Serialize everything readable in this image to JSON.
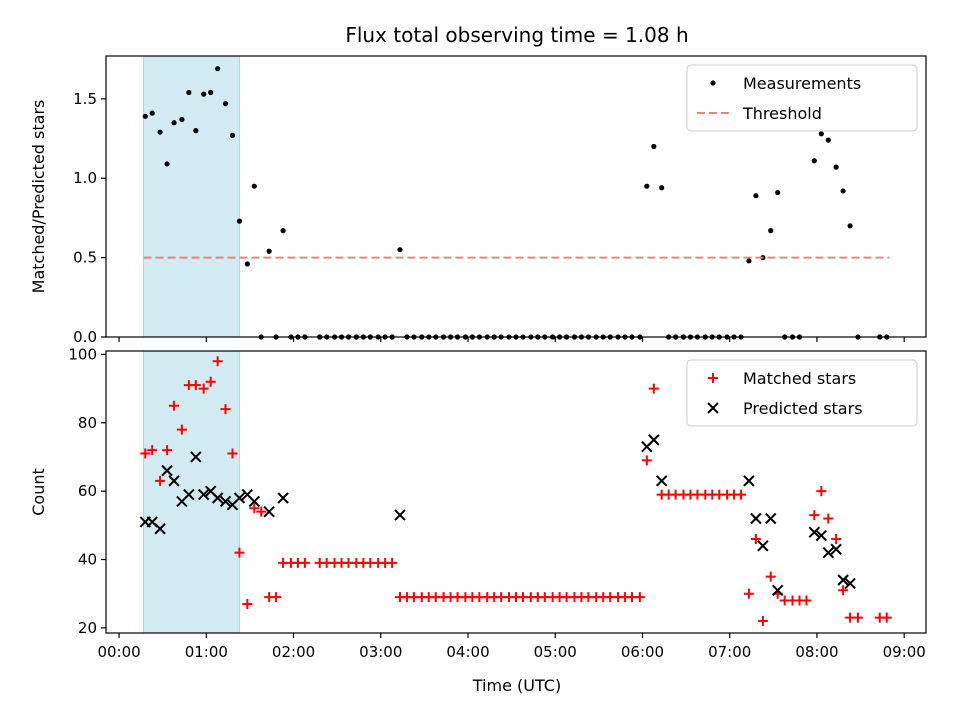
{
  "figure": {
    "title": "Flux total observing time = 1.08 h",
    "xlabel": "Time (UTC)",
    "x_ticks": [
      "00:00",
      "01:00",
      "02:00",
      "03:00",
      "04:00",
      "05:00",
      "06:00",
      "07:00",
      "08:00",
      "09:00"
    ],
    "x_tick_hours": [
      0,
      1,
      2,
      3,
      4,
      5,
      6,
      7,
      8,
      9
    ],
    "shaded_span_hours": [
      0.28,
      1.38
    ]
  },
  "colors": {
    "shade": "#add8e6",
    "measurement": "#000000",
    "threshold": "#f08080",
    "matched": "#ff0000",
    "predicted": "#000000"
  },
  "chart_data": [
    {
      "type": "scatter",
      "ylabel": "Matched/Predicted stars",
      "xlim": [
        -0.15,
        9.25
      ],
      "ylim": [
        0,
        1.77
      ],
      "y_ticks": [
        "0.0",
        "0.5",
        "1.0",
        "1.5"
      ],
      "y_tick_values": [
        0,
        0.5,
        1.0,
        1.5
      ],
      "legend_position": "top-right",
      "series": [
        {
          "name": "Measurements",
          "marker": "dot",
          "points": [
            [
              0.3,
              1.39
            ],
            [
              0.38,
              1.41
            ],
            [
              0.47,
              1.29
            ],
            [
              0.55,
              1.09
            ],
            [
              0.63,
              1.35
            ],
            [
              0.72,
              1.37
            ],
            [
              0.8,
              1.54
            ],
            [
              0.88,
              1.3
            ],
            [
              0.97,
              1.53
            ],
            [
              1.05,
              1.54
            ],
            [
              1.13,
              1.69
            ],
            [
              1.22,
              1.47
            ],
            [
              1.3,
              1.27
            ],
            [
              1.38,
              0.73
            ],
            [
              1.47,
              0.46
            ],
            [
              1.55,
              0.95
            ],
            [
              1.63,
              0
            ],
            [
              1.72,
              0.54
            ],
            [
              1.8,
              0
            ],
            [
              1.88,
              0.67
            ],
            [
              1.97,
              0
            ],
            [
              2.05,
              0
            ],
            [
              2.13,
              0
            ],
            [
              2.3,
              0
            ],
            [
              2.38,
              0
            ],
            [
              2.47,
              0
            ],
            [
              2.55,
              0
            ],
            [
              2.63,
              0
            ],
            [
              2.72,
              0
            ],
            [
              2.8,
              0
            ],
            [
              2.88,
              0
            ],
            [
              2.97,
              0
            ],
            [
              3.05,
              0
            ],
            [
              3.13,
              0
            ],
            [
              3.22,
              0.55
            ],
            [
              3.3,
              0
            ],
            [
              3.38,
              0
            ],
            [
              3.47,
              0
            ],
            [
              3.55,
              0
            ],
            [
              3.63,
              0
            ],
            [
              3.72,
              0
            ],
            [
              3.8,
              0
            ],
            [
              3.88,
              0
            ],
            [
              3.97,
              0
            ],
            [
              4.05,
              0
            ],
            [
              4.13,
              0
            ],
            [
              4.22,
              0
            ],
            [
              4.3,
              0
            ],
            [
              4.38,
              0
            ],
            [
              4.47,
              0
            ],
            [
              4.55,
              0
            ],
            [
              4.63,
              0
            ],
            [
              4.72,
              0
            ],
            [
              4.8,
              0
            ],
            [
              4.88,
              0
            ],
            [
              4.97,
              0
            ],
            [
              5.05,
              0
            ],
            [
              5.13,
              0
            ],
            [
              5.22,
              0
            ],
            [
              5.3,
              0
            ],
            [
              5.38,
              0
            ],
            [
              5.47,
              0
            ],
            [
              5.55,
              0
            ],
            [
              5.63,
              0
            ],
            [
              5.72,
              0
            ],
            [
              5.8,
              0
            ],
            [
              5.88,
              0
            ],
            [
              5.97,
              0
            ],
            [
              6.05,
              0.95
            ],
            [
              6.13,
              1.2
            ],
            [
              6.22,
              0.94
            ],
            [
              6.3,
              0
            ],
            [
              6.38,
              0
            ],
            [
              6.47,
              0
            ],
            [
              6.55,
              0
            ],
            [
              6.63,
              0
            ],
            [
              6.72,
              0
            ],
            [
              6.8,
              0
            ],
            [
              6.88,
              0
            ],
            [
              6.97,
              0
            ],
            [
              7.05,
              0
            ],
            [
              7.13,
              0
            ],
            [
              7.22,
              0.48
            ],
            [
              7.3,
              0.89
            ],
            [
              7.38,
              0.5
            ],
            [
              7.47,
              0.67
            ],
            [
              7.55,
              0.91
            ],
            [
              7.63,
              0
            ],
            [
              7.72,
              0
            ],
            [
              7.8,
              0
            ],
            [
              7.97,
              1.11
            ],
            [
              8.05,
              1.28
            ],
            [
              8.13,
              1.24
            ],
            [
              8.22,
              1.07
            ],
            [
              8.3,
              0.92
            ],
            [
              8.38,
              0.7
            ],
            [
              8.47,
              0
            ],
            [
              8.72,
              0
            ],
            [
              8.8,
              0
            ]
          ]
        },
        {
          "name": "Threshold",
          "marker": "dashed-line",
          "points": [
            [
              0.28,
              0.5
            ],
            [
              8.83,
              0.5
            ]
          ]
        }
      ]
    },
    {
      "type": "scatter",
      "ylabel": "Count",
      "xlim": [
        -0.15,
        9.25
      ],
      "ylim": [
        18.5,
        101
      ],
      "y_ticks": [
        "20",
        "40",
        "60",
        "80",
        "100"
      ],
      "y_tick_values": [
        20,
        40,
        60,
        80,
        100
      ],
      "legend_position": "top-right",
      "series": [
        {
          "name": "Matched stars",
          "marker": "plus",
          "points": [
            [
              0.3,
              71
            ],
            [
              0.38,
              72
            ],
            [
              0.47,
              63
            ],
            [
              0.55,
              72
            ],
            [
              0.63,
              85
            ],
            [
              0.72,
              78
            ],
            [
              0.8,
              91
            ],
            [
              0.88,
              91
            ],
            [
              0.97,
              90
            ],
            [
              1.05,
              92
            ],
            [
              1.13,
              98
            ],
            [
              1.22,
              84
            ],
            [
              1.3,
              71
            ],
            [
              1.38,
              42
            ],
            [
              1.47,
              27
            ],
            [
              1.55,
              55
            ],
            [
              1.63,
              54
            ],
            [
              1.72,
              29
            ],
            [
              1.8,
              29
            ],
            [
              1.88,
              39
            ],
            [
              1.97,
              39
            ],
            [
              2.05,
              39
            ],
            [
              2.13,
              39
            ],
            [
              2.3,
              39
            ],
            [
              2.38,
              39
            ],
            [
              2.47,
              39
            ],
            [
              2.55,
              39
            ],
            [
              2.63,
              39
            ],
            [
              2.72,
              39
            ],
            [
              2.8,
              39
            ],
            [
              2.88,
              39
            ],
            [
              2.97,
              39
            ],
            [
              3.05,
              39
            ],
            [
              3.13,
              39
            ],
            [
              3.22,
              29
            ],
            [
              3.3,
              29
            ],
            [
              3.38,
              29
            ],
            [
              3.47,
              29
            ],
            [
              3.55,
              29
            ],
            [
              3.63,
              29
            ],
            [
              3.72,
              29
            ],
            [
              3.8,
              29
            ],
            [
              3.88,
              29
            ],
            [
              3.97,
              29
            ],
            [
              4.05,
              29
            ],
            [
              4.13,
              29
            ],
            [
              4.22,
              29
            ],
            [
              4.3,
              29
            ],
            [
              4.38,
              29
            ],
            [
              4.47,
              29
            ],
            [
              4.55,
              29
            ],
            [
              4.63,
              29
            ],
            [
              4.72,
              29
            ],
            [
              4.8,
              29
            ],
            [
              4.88,
              29
            ],
            [
              4.97,
              29
            ],
            [
              5.05,
              29
            ],
            [
              5.13,
              29
            ],
            [
              5.22,
              29
            ],
            [
              5.3,
              29
            ],
            [
              5.38,
              29
            ],
            [
              5.47,
              29
            ],
            [
              5.55,
              29
            ],
            [
              5.63,
              29
            ],
            [
              5.72,
              29
            ],
            [
              5.8,
              29
            ],
            [
              5.88,
              29
            ],
            [
              5.97,
              29
            ],
            [
              6.05,
              69
            ],
            [
              6.13,
              90
            ],
            [
              6.22,
              59
            ],
            [
              6.3,
              59
            ],
            [
              6.38,
              59
            ],
            [
              6.47,
              59
            ],
            [
              6.55,
              59
            ],
            [
              6.63,
              59
            ],
            [
              6.72,
              59
            ],
            [
              6.8,
              59
            ],
            [
              6.88,
              59
            ],
            [
              6.97,
              59
            ],
            [
              7.05,
              59
            ],
            [
              7.13,
              59
            ],
            [
              7.22,
              30
            ],
            [
              7.3,
              46
            ],
            [
              7.38,
              22
            ],
            [
              7.47,
              35
            ],
            [
              7.55,
              30
            ],
            [
              7.63,
              28
            ],
            [
              7.72,
              28
            ],
            [
              7.8,
              28
            ],
            [
              7.88,
              28
            ],
            [
              7.97,
              53
            ],
            [
              8.05,
              60
            ],
            [
              8.13,
              52
            ],
            [
              8.22,
              46
            ],
            [
              8.3,
              31
            ],
            [
              8.38,
              23
            ],
            [
              8.47,
              23
            ],
            [
              8.72,
              23
            ],
            [
              8.8,
              23
            ]
          ]
        },
        {
          "name": "Predicted stars",
          "marker": "x",
          "points": [
            [
              0.3,
              51
            ],
            [
              0.38,
              51
            ],
            [
              0.47,
              49
            ],
            [
              0.55,
              66
            ],
            [
              0.63,
              63
            ],
            [
              0.72,
              57
            ],
            [
              0.8,
              59
            ],
            [
              0.88,
              70
            ],
            [
              0.97,
              59
            ],
            [
              1.05,
              60
            ],
            [
              1.13,
              58
            ],
            [
              1.22,
              57
            ],
            [
              1.3,
              56
            ],
            [
              1.38,
              58
            ],
            [
              1.47,
              59
            ],
            [
              1.55,
              57
            ],
            [
              1.72,
              54
            ],
            [
              1.88,
              58
            ],
            [
              3.22,
              53
            ],
            [
              6.05,
              73
            ],
            [
              6.13,
              75
            ],
            [
              6.22,
              63
            ],
            [
              7.22,
              63
            ],
            [
              7.3,
              52
            ],
            [
              7.38,
              44
            ],
            [
              7.47,
              52
            ],
            [
              7.55,
              31
            ],
            [
              7.97,
              48
            ],
            [
              8.05,
              47
            ],
            [
              8.13,
              42
            ],
            [
              8.22,
              43
            ],
            [
              8.3,
              34
            ],
            [
              8.38,
              33
            ]
          ]
        }
      ]
    }
  ]
}
